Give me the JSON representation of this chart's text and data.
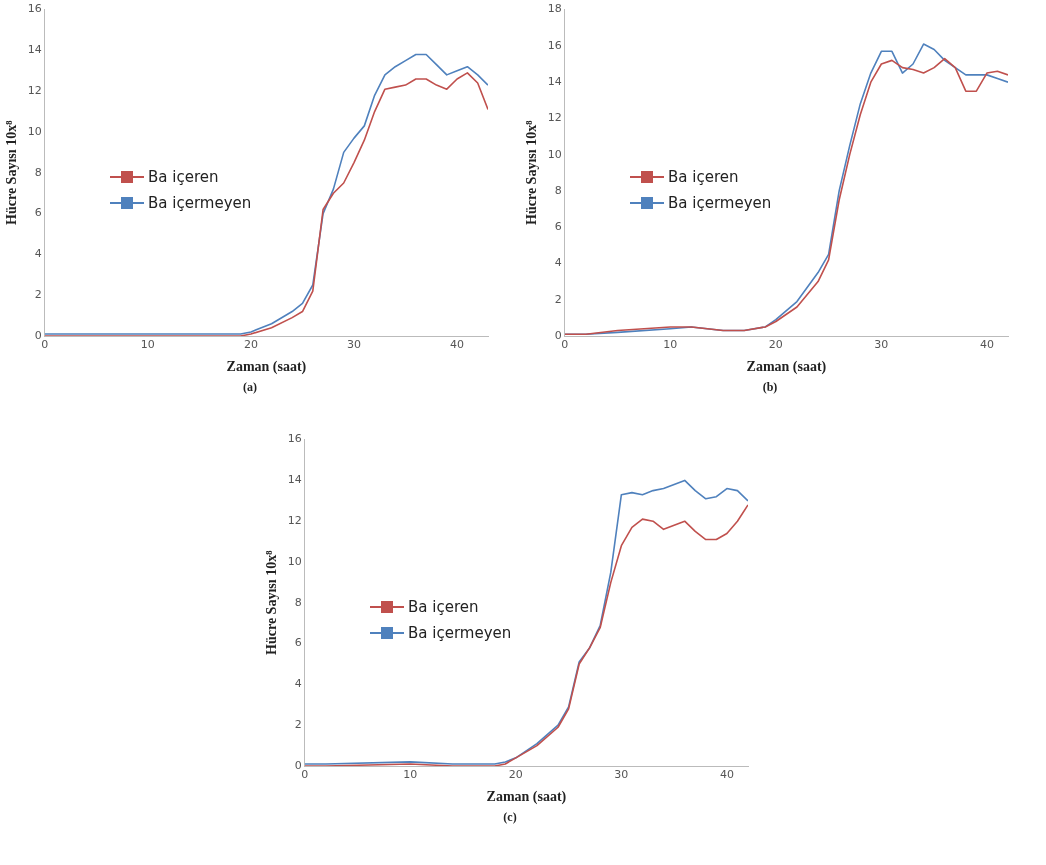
{
  "chart_data": [
    {
      "type": "line",
      "xlabel": "Zaman (saat)",
      "ylabel": "Hücre Sayısı 10x⁸",
      "annotations": [
        "(a)"
      ],
      "xlim": [
        0,
        43
      ],
      "xticks": [
        0,
        10,
        20,
        30,
        40
      ],
      "ylim": [
        0,
        16
      ],
      "yticks": [
        0,
        2,
        4,
        6,
        8,
        10,
        12,
        14,
        16
      ],
      "grid": false,
      "legend": "left",
      "x": [
        0,
        2,
        11,
        19,
        20,
        22,
        24,
        25,
        26,
        27,
        28,
        29,
        30,
        31,
        32,
        33,
        34,
        35,
        36,
        37,
        38,
        39,
        40,
        41,
        42,
        43
      ],
      "series": [
        {
          "name": "Ba içeren",
          "color": "#c0504d",
          "values": [
            0,
            0,
            0,
            0,
            0.1,
            0.4,
            0.9,
            1.2,
            2.2,
            6.2,
            7.0,
            7.5,
            8.5,
            9.6,
            11.0,
            12.1,
            12.2,
            12.3,
            12.6,
            12.6,
            12.3,
            12.1,
            12.6,
            12.9,
            12.4,
            11.1
          ]
        },
        {
          "name": "Ba içermeyen",
          "color": "#4f81bd",
          "values": [
            0.1,
            0.1,
            0.1,
            0.1,
            0.2,
            0.6,
            1.2,
            1.6,
            2.5,
            6.0,
            7.2,
            9.0,
            9.7,
            10.3,
            11.8,
            12.8,
            13.2,
            13.5,
            13.8,
            13.8,
            13.3,
            12.8,
            13.0,
            13.2,
            12.8,
            12.3
          ]
        }
      ]
    },
    {
      "type": "line",
      "xlabel": "Zaman (saat)",
      "ylabel": "Hücre Sayısı 10x⁸",
      "annotations": [
        "(b)"
      ],
      "xlim": [
        0,
        42
      ],
      "xticks": [
        0,
        10,
        20,
        30,
        40
      ],
      "ylim": [
        0,
        18
      ],
      "yticks": [
        0,
        2,
        4,
        6,
        8,
        10,
        12,
        14,
        16,
        18
      ],
      "grid": false,
      "legend": "left",
      "x": [
        0,
        2,
        5,
        10,
        12,
        15,
        17,
        19,
        20,
        22,
        24,
        25,
        26,
        27,
        28,
        29,
        30,
        31,
        32,
        33,
        34,
        35,
        36,
        37,
        38,
        39,
        40,
        41,
        42
      ],
      "series": [
        {
          "name": "Ba içeren",
          "color": "#c0504d",
          "values": [
            0.1,
            0.1,
            0.3,
            0.5,
            0.5,
            0.3,
            0.3,
            0.5,
            0.8,
            1.6,
            3.0,
            4.2,
            7.5,
            10.0,
            12.2,
            14.0,
            15.0,
            15.2,
            14.8,
            14.7,
            14.5,
            14.8,
            15.3,
            14.8,
            13.5,
            13.5,
            14.5,
            14.6,
            14.4
          ]
        },
        {
          "name": "Ba içermeyen",
          "color": "#4f81bd",
          "values": [
            0.1,
            0.1,
            0.2,
            0.4,
            0.5,
            0.3,
            0.3,
            0.5,
            0.9,
            1.9,
            3.5,
            4.5,
            8.0,
            10.5,
            12.8,
            14.5,
            15.7,
            15.7,
            14.5,
            15.0,
            16.1,
            15.8,
            15.2,
            14.8,
            14.4,
            14.4,
            14.4,
            14.2,
            14.0
          ]
        }
      ]
    },
    {
      "type": "line",
      "xlabel": "Zaman (saat)",
      "ylabel": "Hücre Sayısı 10x⁸",
      "annotations": [
        "(c)"
      ],
      "xlim": [
        0,
        42
      ],
      "xticks": [
        0,
        10,
        20,
        30,
        40
      ],
      "ylim": [
        0,
        16
      ],
      "yticks": [
        0,
        2,
        4,
        6,
        8,
        10,
        12,
        14,
        16
      ],
      "grid": false,
      "legend": "left",
      "x": [
        0,
        2,
        10,
        14,
        18,
        19,
        20,
        22,
        24,
        25,
        26,
        27,
        28,
        29,
        30,
        31,
        32,
        33,
        34,
        35,
        36,
        37,
        38,
        39,
        40,
        41,
        42
      ],
      "series": [
        {
          "name": "Ba içeren",
          "color": "#c0504d",
          "values": [
            0,
            0,
            0.1,
            0,
            0,
            0.1,
            0.4,
            1.0,
            1.9,
            2.8,
            5.0,
            5.8,
            6.8,
            9.0,
            10.8,
            11.7,
            12.1,
            12.0,
            11.6,
            11.8,
            12.0,
            11.5,
            11.1,
            11.1,
            11.4,
            12.0,
            12.8
          ]
        },
        {
          "name": "Ba içermeyen",
          "color": "#4f81bd",
          "values": [
            0.1,
            0.1,
            0.2,
            0.1,
            0.1,
            0.2,
            0.4,
            1.1,
            2.0,
            2.9,
            5.1,
            5.8,
            6.9,
            9.5,
            13.3,
            13.4,
            13.3,
            13.5,
            13.6,
            13.8,
            14.0,
            13.5,
            13.1,
            13.2,
            13.6,
            13.5,
            13.0
          ]
        }
      ]
    }
  ]
}
